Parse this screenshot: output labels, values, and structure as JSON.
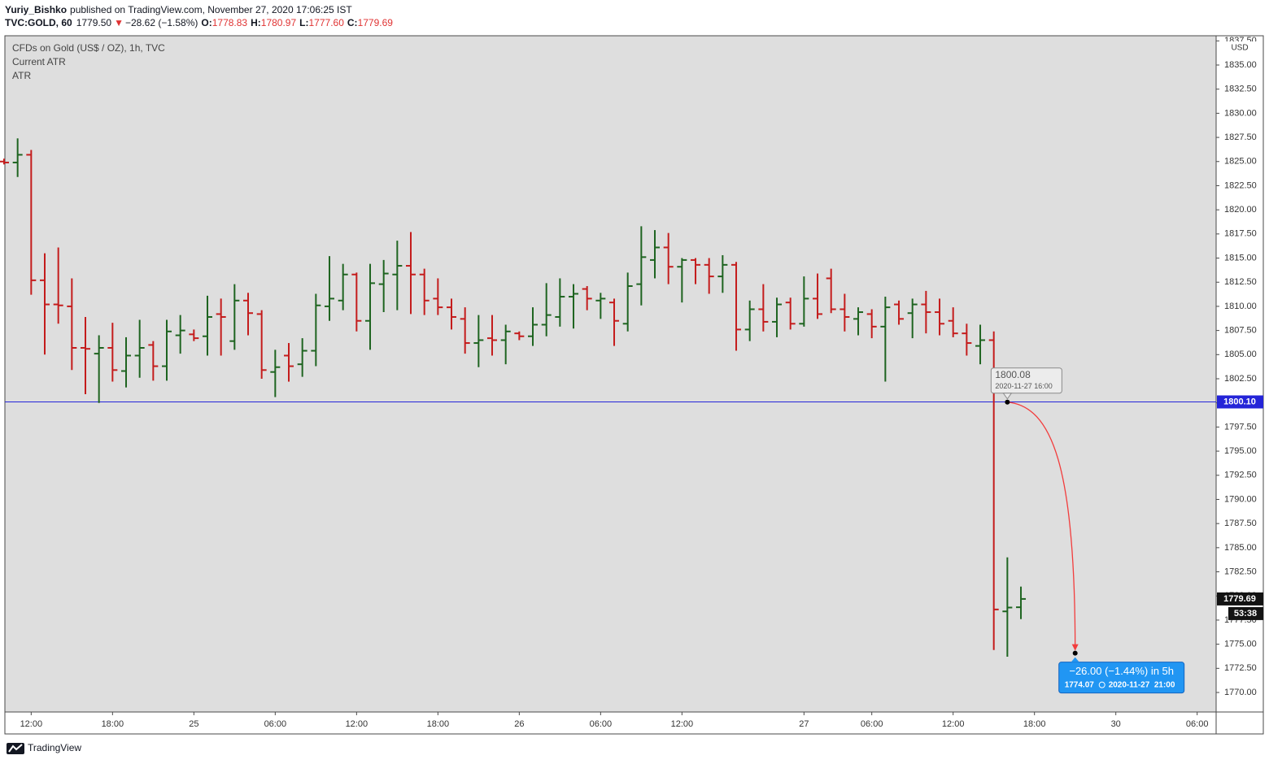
{
  "header": {
    "author": "Yuriy_Bishko",
    "published": "published on TradingView.com, November 27, 2020 17:06:25 IST",
    "symbol": "TVC:GOLD, 60",
    "last": "1779.50",
    "arrow": "▼",
    "change": "−28.62 (−1.58%)",
    "ohlc": [
      {
        "label": "O:",
        "value": "1778.83"
      },
      {
        "label": "H:",
        "value": "1780.97"
      },
      {
        "label": "L:",
        "value": "1777.60"
      },
      {
        "label": "C:",
        "value": "1779.69"
      }
    ]
  },
  "chart_data": {
    "type": "ohlc",
    "title": "CFDs on Gold (US$ / OZ), 1h, TVC",
    "indicators": [
      "Current ATR",
      "ATR"
    ],
    "currency": "USD",
    "categories": [
      null,
      null,
      "12:00",
      null,
      null,
      null,
      null,
      null,
      "18:00",
      null,
      null,
      null,
      null,
      null,
      "25",
      null,
      null,
      null,
      null,
      null,
      "06:00",
      null,
      null,
      null,
      null,
      null,
      "12:00",
      null,
      null,
      null,
      null,
      null,
      "18:00",
      null,
      null,
      null,
      null,
      null,
      "26",
      null,
      null,
      null,
      null,
      null,
      "06:00",
      null,
      null,
      null,
      null,
      null,
      "12:00",
      null,
      null,
      null,
      null,
      null,
      null,
      null,
      null,
      "27",
      null,
      null,
      null,
      null,
      "06:00",
      null,
      null,
      null,
      null,
      null,
      "12:00",
      null,
      null,
      null,
      null,
      null,
      "18:00",
      null,
      null,
      null,
      null,
      null,
      "30",
      null,
      null,
      null,
      null,
      null,
      "06:00"
    ],
    "open": [
      1825.0,
      1824.9,
      1825.7,
      1812.7,
      1810.2,
      1810.0,
      1805.7,
      1805.1,
      1805.7,
      1803.3,
      1804.9,
      1806.0,
      1803.8,
      1807.0,
      1807.1,
      1806.9,
      1809.2,
      1806.4,
      1810.6,
      1809.2,
      1803.2,
      1804.9,
      1804.0,
      1805.4,
      1810.0,
      1810.6,
      1813.3,
      1808.5,
      1812.3,
      1813.3,
      1814.2,
      1813.3,
      1810.8,
      1809.9,
      1808.7,
      1806.2,
      1806.7,
      1806.5,
      1807.2,
      1806.9,
      1808.1,
      1808.9,
      1811.0,
      1811.8,
      1810.6,
      1810.4,
      1808.2,
      1812.3,
      1814.8,
      1816.1,
      1814.1,
      1814.8,
      1814.3,
      1813.1,
      1814.3,
      1807.6,
      1809.7,
      1808.4,
      1810.4,
      1808.2,
      1810.8,
      1812.9,
      1809.7,
      1808.7,
      1809.2,
      1807.9,
      1810.2,
      1809.3,
      1810.2,
      1809.4,
      1808.5,
      1807.2,
      1805.9,
      1806.5,
      1778.4,
      1778.83,
      null,
      null,
      null,
      null,
      null,
      null,
      null,
      null,
      null,
      null,
      null,
      null,
      null
    ],
    "high": [
      1825.3,
      1827.4,
      1826.2,
      1815.5,
      1816.1,
      1812.9,
      1808.9,
      1807.0,
      1808.3,
      1806.8,
      1808.6,
      1806.4,
      1808.6,
      1809.1,
      1807.6,
      1811.1,
      1810.8,
      1812.3,
      1811.4,
      1809.6,
      1805.5,
      1806.2,
      1806.7,
      1811.3,
      1815.2,
      1814.4,
      1813.5,
      1814.4,
      1814.8,
      1816.8,
      1817.7,
      1813.9,
      1812.9,
      1810.8,
      1809.9,
      1809.1,
      1809.1,
      1808.1,
      1807.4,
      1809.9,
      1812.4,
      1812.9,
      1812.3,
      1812.1,
      1811.4,
      1810.8,
      1813.5,
      1818.3,
      1817.9,
      1817.6,
      1815.0,
      1815.0,
      1815.0,
      1815.3,
      1814.6,
      1810.6,
      1812.3,
      1810.9,
      1810.9,
      1813.1,
      1813.4,
      1813.9,
      1811.3,
      1809.9,
      1809.7,
      1811.0,
      1810.6,
      1810.8,
      1811.6,
      1810.8,
      1809.9,
      1808.2,
      1808.1,
      1807.4,
      1784.0,
      1780.97,
      null,
      null,
      null,
      null,
      null,
      null,
      null,
      null,
      null,
      null,
      null,
      null,
      null
    ],
    "low": [
      1824.7,
      1823.4,
      1811.2,
      1805.0,
      1808.2,
      1803.4,
      1800.9,
      1800.0,
      1802.2,
      1801.6,
      1802.6,
      1802.3,
      1802.3,
      1805.1,
      1806.4,
      1804.9,
      1804.9,
      1805.5,
      1807.0,
      1802.5,
      1800.6,
      1802.2,
      1802.7,
      1803.8,
      1808.5,
      1809.6,
      1807.4,
      1805.5,
      1809.4,
      1809.6,
      1809.2,
      1809.1,
      1809.1,
      1807.6,
      1805.1,
      1803.7,
      1804.9,
      1804.0,
      1806.5,
      1805.9,
      1806.9,
      1807.9,
      1807.7,
      1809.6,
      1808.7,
      1805.9,
      1807.4,
      1810.1,
      1812.9,
      1812.3,
      1810.4,
      1812.3,
      1811.3,
      1811.4,
      1805.4,
      1806.4,
      1807.4,
      1806.8,
      1807.6,
      1807.9,
      1808.7,
      1809.3,
      1807.4,
      1807.0,
      1806.7,
      1802.2,
      1808.1,
      1806.7,
      1807.2,
      1807.0,
      1806.8,
      1804.9,
      1804.0,
      1774.4,
      1773.7,
      1777.6,
      null,
      null,
      null,
      null,
      null,
      null,
      null,
      null,
      null,
      null,
      null,
      null,
      null
    ],
    "close": [
      1824.9,
      1825.7,
      1812.7,
      1810.2,
      1810.1,
      1805.7,
      1805.6,
      1805.7,
      1803.4,
      1804.9,
      1805.7,
      1803.8,
      1807.4,
      1807.5,
      1806.7,
      1808.9,
      1808.9,
      1810.6,
      1809.3,
      1803.4,
      1803.7,
      1803.8,
      1805.4,
      1810.1,
      1810.8,
      1813.3,
      1808.5,
      1812.4,
      1813.4,
      1814.2,
      1813.3,
      1810.6,
      1809.9,
      1808.9,
      1806.2,
      1806.5,
      1806.5,
      1807.4,
      1806.9,
      1808.1,
      1809.1,
      1811.0,
      1811.3,
      1810.8,
      1810.8,
      1808.5,
      1812.1,
      1815.1,
      1816.1,
      1814.1,
      1814.8,
      1814.3,
      1813.1,
      1814.3,
      1807.6,
      1809.7,
      1808.4,
      1810.2,
      1808.2,
      1810.8,
      1809.2,
      1809.7,
      1808.9,
      1809.4,
      1807.9,
      1809.9,
      1808.7,
      1810.2,
      1809.4,
      1808.2,
      1807.2,
      1806.2,
      1806.5,
      1778.6,
      1778.8,
      1779.69,
      null,
      null,
      null,
      null,
      null,
      null,
      null,
      null,
      null,
      null,
      null,
      null,
      null
    ],
    "up_color": "#1e6420",
    "down_color": "#c41c1c",
    "ylim": [
      1767.98,
      1838.03
    ],
    "yticks": [
      {
        "value": 1770,
        "label": "1770.00"
      },
      {
        "value": 1772.5,
        "label": "1772.50"
      },
      {
        "value": 1775,
        "label": "1775.00"
      },
      {
        "value": 1777.5,
        "label": "1777.50"
      },
      {
        "value": 1780,
        "label": "1780.00"
      },
      {
        "value": 1782.5,
        "label": "1782.50"
      },
      {
        "value": 1785,
        "label": "1785.00"
      },
      {
        "value": 1787.5,
        "label": "1787.50"
      },
      {
        "value": 1790,
        "label": "1790.00"
      },
      {
        "value": 1792.5,
        "label": "1792.50"
      },
      {
        "value": 1795,
        "label": "1795.00"
      },
      {
        "value": 1797.5,
        "label": "1797.50"
      },
      {
        "value": 1800,
        "label": "1800.00"
      },
      {
        "value": 1802.5,
        "label": "1802.50"
      },
      {
        "value": 1805,
        "label": "1805.00"
      },
      {
        "value": 1807.5,
        "label": "1807.50"
      },
      {
        "value": 1810,
        "label": "1810.00"
      },
      {
        "value": 1812.5,
        "label": "1812.50"
      },
      {
        "value": 1815,
        "label": "1815.00"
      },
      {
        "value": 1817.5,
        "label": "1817.50"
      },
      {
        "value": 1820,
        "label": "1820.00"
      },
      {
        "value": 1822.5,
        "label": "1822.50"
      },
      {
        "value": 1825,
        "label": "1825.00"
      },
      {
        "value": 1827.5,
        "label": "1827.50"
      },
      {
        "value": 1830,
        "label": "1830.00"
      },
      {
        "value": 1832.5,
        "label": "1832.50"
      },
      {
        "value": 1835,
        "label": "1835.00"
      },
      {
        "value": 1837.5,
        "label": "1837.50"
      }
    ],
    "grid": false,
    "hline": {
      "value": 1800.1,
      "label": "1800.10",
      "color": "#2424d8"
    },
    "countdown": "53:38",
    "projection": {
      "start": {
        "value": 1800.08,
        "date": "2020-11-27 16:00"
      },
      "end": {
        "value": 1774.07,
        "date": "2020-11-27  21:00",
        "change": "−26.00 (−1.44%) in 5h"
      }
    }
  },
  "footer": {
    "brand": "TradingView"
  }
}
